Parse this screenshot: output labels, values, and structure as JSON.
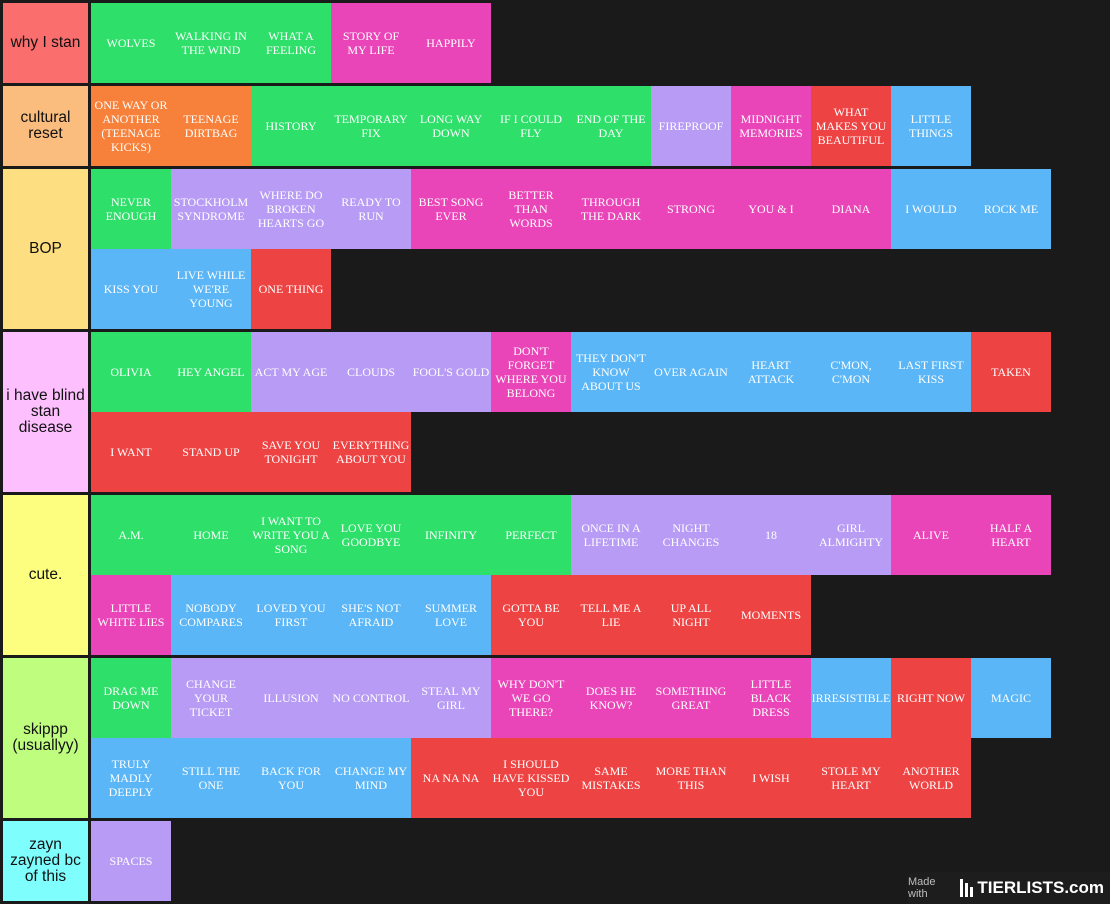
{
  "colors": {
    "green": "#2ee06a",
    "pink": "#ea45b8",
    "orange": "#f7813a",
    "purple": "#b79bf4",
    "red": "#ee4343",
    "blue": "#5ab6f6",
    "background": "#1a1a1a"
  },
  "tiers": [
    {
      "label": "why I stan",
      "color": "#fa6e6e",
      "items": [
        {
          "text": "WOLVES",
          "color": "green"
        },
        {
          "text": "WALKING IN THE WIND",
          "color": "green"
        },
        {
          "text": "WHAT A FEELING",
          "color": "green"
        },
        {
          "text": "STORY OF MY LIFE",
          "color": "pink"
        },
        {
          "text": "HAPPILY",
          "color": "pink"
        }
      ]
    },
    {
      "label": "cultural reset",
      "color": "#fbbd7e",
      "items": [
        {
          "text": "ONE WAY OR ANOTHER (TEENAGE KICKS)",
          "color": "orange"
        },
        {
          "text": "TEENAGE DIRTBAG",
          "color": "orange"
        },
        {
          "text": "HISTORY",
          "color": "green"
        },
        {
          "text": "TEMPORARY FIX",
          "color": "green"
        },
        {
          "text": "LONG WAY DOWN",
          "color": "green"
        },
        {
          "text": "IF I COULD FLY",
          "color": "green"
        },
        {
          "text": "END OF THE DAY",
          "color": "green"
        },
        {
          "text": "FIREPROOF",
          "color": "purple"
        },
        {
          "text": "MIDNIGHT MEMORIES",
          "color": "pink"
        },
        {
          "text": "WHAT MAKES YOU BEAUTIFUL",
          "color": "red"
        },
        {
          "text": "LITTLE THINGS",
          "color": "blue"
        }
      ]
    },
    {
      "label": "BOP",
      "color": "#fdde80",
      "items": [
        {
          "text": "NEVER ENOUGH",
          "color": "green"
        },
        {
          "text": "STOCKHOLM SYNDROME",
          "color": "purple"
        },
        {
          "text": "WHERE DO BROKEN HEARTS GO",
          "color": "purple"
        },
        {
          "text": "READY TO RUN",
          "color": "purple"
        },
        {
          "text": "BEST SONG EVER",
          "color": "pink"
        },
        {
          "text": "BETTER THAN WORDS",
          "color": "pink"
        },
        {
          "text": "THROUGH THE DARK",
          "color": "pink"
        },
        {
          "text": "STRONG",
          "color": "pink"
        },
        {
          "text": "YOU & I",
          "color": "pink"
        },
        {
          "text": "DIANA",
          "color": "pink"
        },
        {
          "text": "I WOULD",
          "color": "blue"
        },
        {
          "text": "ROCK ME",
          "color": "blue"
        },
        {
          "text": "KISS YOU",
          "color": "blue"
        },
        {
          "text": "LIVE WHILE WE'RE YOUNG",
          "color": "blue"
        },
        {
          "text": "ONE THING",
          "color": "red"
        }
      ]
    },
    {
      "label": "i have blind stan disease",
      "color": "#fdbffd",
      "items": [
        {
          "text": "OLIVIA",
          "color": "green"
        },
        {
          "text": "HEY ANGEL",
          "color": "green"
        },
        {
          "text": "ACT MY AGE",
          "color": "purple"
        },
        {
          "text": "CLOUDS",
          "color": "purple"
        },
        {
          "text": "FOOL'S GOLD",
          "color": "purple"
        },
        {
          "text": "DON'T FORGET WHERE YOU BELONG",
          "color": "pink"
        },
        {
          "text": "THEY DON'T KNOW ABOUT US",
          "color": "blue"
        },
        {
          "text": "OVER AGAIN",
          "color": "blue"
        },
        {
          "text": "HEART ATTACK",
          "color": "blue"
        },
        {
          "text": "C'MON, C'MON",
          "color": "blue"
        },
        {
          "text": "LAST FIRST KISS",
          "color": "blue"
        },
        {
          "text": "TAKEN",
          "color": "red"
        },
        {
          "text": "I WANT",
          "color": "red"
        },
        {
          "text": "STAND UP",
          "color": "red"
        },
        {
          "text": "SAVE YOU TONIGHT",
          "color": "red"
        },
        {
          "text": "EVERYTHING ABOUT YOU",
          "color": "red"
        }
      ]
    },
    {
      "label": "cute.",
      "color": "#fdfd80",
      "items": [
        {
          "text": "A.M.",
          "color": "green"
        },
        {
          "text": "HOME",
          "color": "green"
        },
        {
          "text": "I WANT TO WRITE YOU A SONG",
          "color": "green"
        },
        {
          "text": "LOVE YOU GOODBYE",
          "color": "green"
        },
        {
          "text": "INFINITY",
          "color": "green"
        },
        {
          "text": "PERFECT",
          "color": "green"
        },
        {
          "text": "ONCE IN A LIFETIME",
          "color": "purple"
        },
        {
          "text": "NIGHT CHANGES",
          "color": "purple"
        },
        {
          "text": "18",
          "color": "purple"
        },
        {
          "text": "GIRL ALMIGHTY",
          "color": "purple"
        },
        {
          "text": "ALIVE",
          "color": "pink"
        },
        {
          "text": "HALF A HEART",
          "color": "pink"
        },
        {
          "text": "LITTLE WHITE LIES",
          "color": "pink"
        },
        {
          "text": "NOBODY COMPARES",
          "color": "blue"
        },
        {
          "text": "LOVED YOU FIRST",
          "color": "blue"
        },
        {
          "text": "SHE'S NOT AFRAID",
          "color": "blue"
        },
        {
          "text": "SUMMER LOVE",
          "color": "blue"
        },
        {
          "text": "GOTTA BE YOU",
          "color": "red"
        },
        {
          "text": "TELL ME A LIE",
          "color": "red"
        },
        {
          "text": "UP ALL NIGHT",
          "color": "red"
        },
        {
          "text": "MOMENTS",
          "color": "red"
        }
      ]
    },
    {
      "label": "skippp (usuallyy)",
      "color": "#bffd7f",
      "items": [
        {
          "text": "DRAG ME DOWN",
          "color": "green"
        },
        {
          "text": "CHANGE YOUR TICKET",
          "color": "purple"
        },
        {
          "text": "ILLUSION",
          "color": "purple"
        },
        {
          "text": "NO CONTROL",
          "color": "purple"
        },
        {
          "text": "STEAL MY GIRL",
          "color": "purple"
        },
        {
          "text": "WHY DON'T WE GO THERE?",
          "color": "pink"
        },
        {
          "text": "DOES HE KNOW?",
          "color": "pink"
        },
        {
          "text": "SOMETHING GREAT",
          "color": "pink"
        },
        {
          "text": "LITTLE BLACK DRESS",
          "color": "pink"
        },
        {
          "text": "IRRESISTIBLE",
          "color": "blue"
        },
        {
          "text": "RIGHT NOW",
          "color": "red"
        },
        {
          "text": "MAGIC",
          "color": "blue"
        },
        {
          "text": "TRULY MADLY DEEPLY",
          "color": "blue"
        },
        {
          "text": "STILL THE ONE",
          "color": "blue"
        },
        {
          "text": "BACK FOR YOU",
          "color": "blue"
        },
        {
          "text": "CHANGE MY MIND",
          "color": "blue"
        },
        {
          "text": "NA NA NA",
          "color": "red"
        },
        {
          "text": "I SHOULD HAVE KISSED YOU",
          "color": "red"
        },
        {
          "text": "SAME MISTAKES",
          "color": "red"
        },
        {
          "text": "MORE THAN THIS",
          "color": "red"
        },
        {
          "text": "I WISH",
          "color": "red"
        },
        {
          "text": "STOLE MY HEART",
          "color": "red"
        },
        {
          "text": "ANOTHER WORLD",
          "color": "red"
        }
      ]
    },
    {
      "label": "zayn zayned bc of this",
      "color": "#7ffefe",
      "items": [
        {
          "text": "SPACES",
          "color": "purple"
        }
      ]
    }
  ],
  "footer": {
    "made_with": "Made with",
    "brand": "TIERLISTS.com"
  }
}
